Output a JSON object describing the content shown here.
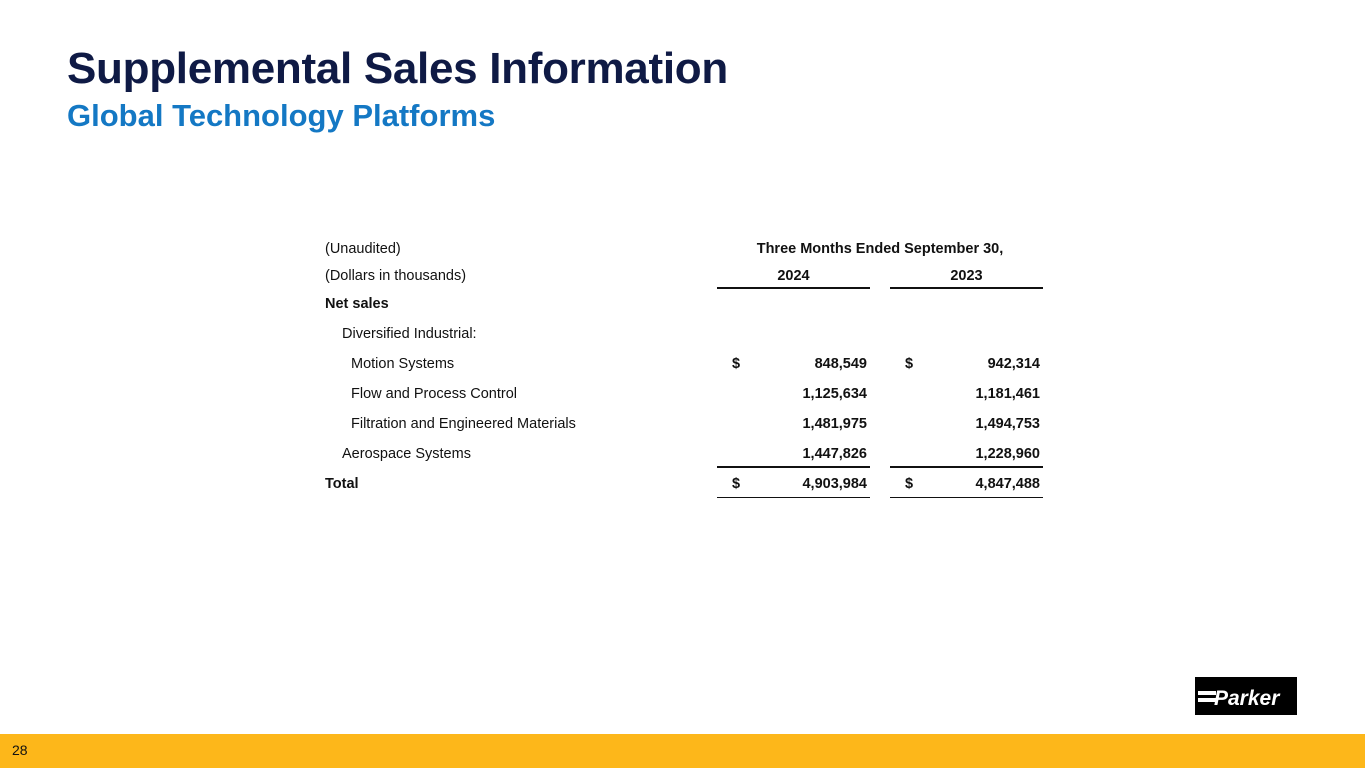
{
  "header": {
    "title": "Supplemental Sales Information",
    "subtitle": "Global Technology Platforms"
  },
  "table": {
    "unaudited_label": "(Unaudited)",
    "units_label": "(Dollars in thousands)",
    "period_header": "Three Months Ended September 30,",
    "year_2024": "2024",
    "year_2023": "2023",
    "section_label": "Net sales",
    "group_label": "Diversified Industrial:",
    "currency_symbol": "$",
    "rows": [
      {
        "label": "Motion Systems",
        "v2024": "848,549",
        "v2023": "942,314"
      },
      {
        "label": "Flow and Process Control",
        "v2024": "1,125,634",
        "v2023": "1,181,461"
      },
      {
        "label": "Filtration and Engineered Materials",
        "v2024": "1,481,975",
        "v2023": "1,494,753"
      },
      {
        "label": "Aerospace Systems",
        "v2024": "1,447,826",
        "v2023": "1,228,960"
      }
    ],
    "total": {
      "label": "Total",
      "v2024": "4,903,984",
      "v2023": "4,847,488"
    }
  },
  "logo": {
    "text": "Parker"
  },
  "footer": {
    "page_number": "28",
    "color": "#fdb71a"
  }
}
